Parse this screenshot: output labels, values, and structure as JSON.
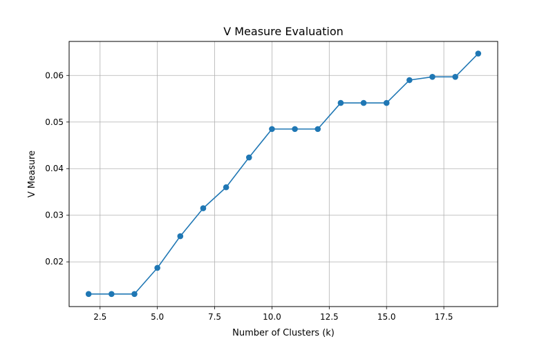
{
  "chart_data": {
    "type": "line",
    "title": "V Measure Evaluation",
    "xlabel": "Number of Clusters (k)",
    "ylabel": "V Measure",
    "xlim": [
      1.15,
      19.85
    ],
    "ylim": [
      0.0104,
      0.0673
    ],
    "x_ticks": [
      2.5,
      5.0,
      7.5,
      10.0,
      12.5,
      15.0,
      17.5
    ],
    "x_tick_labels": [
      "2.5",
      "5.0",
      "7.5",
      "10.0",
      "12.5",
      "15.0",
      "17.5"
    ],
    "y_ticks": [
      0.02,
      0.03,
      0.04,
      0.05,
      0.06
    ],
    "y_tick_labels": [
      "0.02",
      "0.03",
      "0.04",
      "0.05",
      "0.06"
    ],
    "grid": true,
    "legend": "none",
    "series": [
      {
        "x": [
          2,
          3,
          4,
          5,
          6,
          7,
          8,
          9,
          10,
          11,
          12,
          13,
          14,
          15,
          16,
          17,
          18,
          19
        ],
        "values": [
          0.0131,
          0.0131,
          0.0131,
          0.0187,
          0.0255,
          0.0315,
          0.036,
          0.0424,
          0.0485,
          0.0485,
          0.0485,
          0.0541,
          0.0541,
          0.0541,
          0.059,
          0.0597,
          0.0597,
          0.0647
        ],
        "color": "#1f77b4",
        "marker": "circle"
      }
    ]
  }
}
